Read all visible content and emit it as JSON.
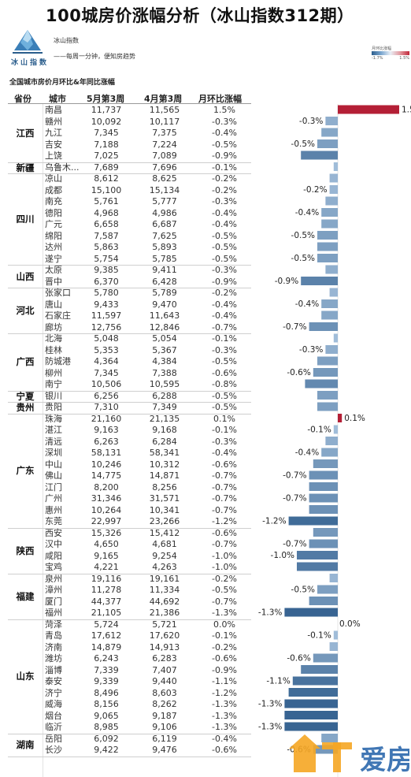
{
  "title": "100城房价涨幅分析（冰山指数312期）",
  "brand": {
    "logo_text": "冰山指数",
    "name": "冰山指数",
    "slogan": "——每周一分钟，便知房趋势"
  },
  "legend": {
    "title": "月环比涨幅",
    "min": "-1.7%",
    "max": "1.5%"
  },
  "subtitle": "全国城市房价月环比&年同比涨幅",
  "headers": [
    "省份",
    "城市",
    "5月第3周",
    "4月第3周",
    "月环比涨幅"
  ],
  "watermark": "爱房",
  "colors": {
    "positive": "#b41f36",
    "negative_light": "#a9c4df",
    "negative_dark": "#2f5d8c"
  },
  "chart_data": {
    "type": "bar",
    "orientation": "horizontal",
    "series_name": "月环比涨幅",
    "groups": [
      {
        "province": "江西",
        "rows": [
          {
            "city": "南昌",
            "w5": "11,737",
            "w4": "11,565",
            "pct": 1.5,
            "label": "1.5%"
          },
          {
            "city": "赣州",
            "w5": "10,092",
            "w4": "10,117",
            "pct": -0.3,
            "label": "-0.3%"
          },
          {
            "city": "九江",
            "w5": "7,345",
            "w4": "7,375",
            "pct": -0.4,
            "label": "-0.4%"
          },
          {
            "city": "吉安",
            "w5": "7,188",
            "w4": "7,224",
            "pct": -0.5,
            "label": "-0.5%"
          },
          {
            "city": "上饶",
            "w5": "7,025",
            "w4": "7,089",
            "pct": -0.9,
            "label": "-0.9%"
          }
        ]
      },
      {
        "province": "新疆",
        "rows": [
          {
            "city": "乌鲁木...",
            "w5": "7,689",
            "w4": "7,696",
            "pct": -0.1,
            "label": "-0.1%"
          }
        ]
      },
      {
        "province": "四川",
        "rows": [
          {
            "city": "凉山",
            "w5": "8,612",
            "w4": "8,625",
            "pct": -0.2,
            "label": "-0.2%"
          },
          {
            "city": "成都",
            "w5": "15,100",
            "w4": "15,134",
            "pct": -0.2,
            "label": "-0.2%"
          },
          {
            "city": "南充",
            "w5": "5,761",
            "w4": "5,777",
            "pct": -0.3,
            "label": "-0.3%"
          },
          {
            "city": "德阳",
            "w5": "4,968",
            "w4": "4,986",
            "pct": -0.4,
            "label": "-0.4%"
          },
          {
            "city": "广元",
            "w5": "6,658",
            "w4": "6,687",
            "pct": -0.4,
            "label": "-0.4%"
          },
          {
            "city": "绵阳",
            "w5": "7,587",
            "w4": "7,625",
            "pct": -0.5,
            "label": "-0.5%"
          },
          {
            "city": "达州",
            "w5": "5,863",
            "w4": "5,893",
            "pct": -0.5,
            "label": "-0.5%"
          },
          {
            "city": "遂宁",
            "w5": "5,754",
            "w4": "5,785",
            "pct": -0.5,
            "label": "-0.5%"
          }
        ]
      },
      {
        "province": "山西",
        "rows": [
          {
            "city": "太原",
            "w5": "9,385",
            "w4": "9,411",
            "pct": -0.3,
            "label": "-0.3%"
          },
          {
            "city": "晋中",
            "w5": "6,370",
            "w4": "6,428",
            "pct": -0.9,
            "label": "-0.9%"
          }
        ]
      },
      {
        "province": "河北",
        "rows": [
          {
            "city": "张家口",
            "w5": "5,780",
            "w4": "5,789",
            "pct": -0.2,
            "label": "-0.2%"
          },
          {
            "city": "唐山",
            "w5": "9,433",
            "w4": "9,470",
            "pct": -0.4,
            "label": "-0.4%"
          },
          {
            "city": "石家庄",
            "w5": "11,597",
            "w4": "11,643",
            "pct": -0.4,
            "label": "-0.4%"
          },
          {
            "city": "廊坊",
            "w5": "12,756",
            "w4": "12,846",
            "pct": -0.7,
            "label": "-0.7%"
          }
        ]
      },
      {
        "province": "广西",
        "rows": [
          {
            "city": "北海",
            "w5": "5,048",
            "w4": "5,054",
            "pct": -0.1,
            "label": "-0.1%"
          },
          {
            "city": "桂林",
            "w5": "5,353",
            "w4": "5,367",
            "pct": -0.3,
            "label": "-0.3%"
          },
          {
            "city": "防城港",
            "w5": "4,364",
            "w4": "4,384",
            "pct": -0.5,
            "label": "-0.5%"
          },
          {
            "city": "柳州",
            "w5": "7,345",
            "w4": "7,388",
            "pct": -0.6,
            "label": "-0.6%"
          },
          {
            "city": "南宁",
            "w5": "10,506",
            "w4": "10,595",
            "pct": -0.8,
            "label": "-0.8%"
          }
        ]
      },
      {
        "province": "宁夏",
        "rows": [
          {
            "city": "银川",
            "w5": "6,256",
            "w4": "6,288",
            "pct": -0.5,
            "label": "-0.5%"
          }
        ]
      },
      {
        "province": "贵州",
        "rows": [
          {
            "city": "贵阳",
            "w5": "7,310",
            "w4": "7,349",
            "pct": -0.5,
            "label": "-0.5%"
          }
        ]
      },
      {
        "province": "广东",
        "rows": [
          {
            "city": "珠海",
            "w5": "21,160",
            "w4": "21,135",
            "pct": 0.1,
            "label": "0.1%"
          },
          {
            "city": "湛江",
            "w5": "9,163",
            "w4": "9,168",
            "pct": -0.1,
            "label": "-0.1%"
          },
          {
            "city": "清远",
            "w5": "6,263",
            "w4": "6,284",
            "pct": -0.3,
            "label": "-0.3%"
          },
          {
            "city": "深圳",
            "w5": "58,131",
            "w4": "58,341",
            "pct": -0.4,
            "label": "-0.4%"
          },
          {
            "city": "中山",
            "w5": "10,246",
            "w4": "10,312",
            "pct": -0.6,
            "label": "-0.6%"
          },
          {
            "city": "佛山",
            "w5": "14,775",
            "w4": "14,871",
            "pct": -0.7,
            "label": "-0.7%"
          },
          {
            "city": "江门",
            "w5": "8,200",
            "w4": "8,256",
            "pct": -0.7,
            "label": "-0.7%"
          },
          {
            "city": "广州",
            "w5": "31,346",
            "w4": "31,571",
            "pct": -0.7,
            "label": "-0.7%"
          },
          {
            "city": "惠州",
            "w5": "10,264",
            "w4": "10,341",
            "pct": -0.7,
            "label": "-0.7%"
          },
          {
            "city": "东莞",
            "w5": "22,997",
            "w4": "23,266",
            "pct": -1.2,
            "label": "-1.2%"
          }
        ]
      },
      {
        "province": "陕西",
        "rows": [
          {
            "city": "西安",
            "w5": "15,326",
            "w4": "15,412",
            "pct": -0.6,
            "label": "-0.6%"
          },
          {
            "city": "汉中",
            "w5": "4,650",
            "w4": "4,681",
            "pct": -0.7,
            "label": "-0.7%"
          },
          {
            "city": "咸阳",
            "w5": "9,165",
            "w4": "9,254",
            "pct": -1.0,
            "label": "-1.0%"
          },
          {
            "city": "宝鸡",
            "w5": "4,221",
            "w4": "4,263",
            "pct": -1.0,
            "label": "-1.0%"
          }
        ]
      },
      {
        "province": "福建",
        "rows": [
          {
            "city": "泉州",
            "w5": "19,116",
            "w4": "19,161",
            "pct": -0.2,
            "label": "-0.2%"
          },
          {
            "city": "漳州",
            "w5": "11,278",
            "w4": "11,334",
            "pct": -0.5,
            "label": "-0.5%"
          },
          {
            "city": "厦门",
            "w5": "44,377",
            "w4": "44,692",
            "pct": -0.7,
            "label": "-0.7%"
          },
          {
            "city": "福州",
            "w5": "21,105",
            "w4": "21,386",
            "pct": -1.3,
            "label": "-1.3%"
          }
        ]
      },
      {
        "province": "山东",
        "rows": [
          {
            "city": "菏泽",
            "w5": "5,724",
            "w4": "5,721",
            "pct": 0.0,
            "label": "0.0%"
          },
          {
            "city": "青岛",
            "w5": "17,612",
            "w4": "17,620",
            "pct": -0.1,
            "label": "-0.1%"
          },
          {
            "city": "济南",
            "w5": "14,879",
            "w4": "14,913",
            "pct": -0.2,
            "label": "-0.2%"
          },
          {
            "city": "潍坊",
            "w5": "6,243",
            "w4": "6,283",
            "pct": -0.6,
            "label": "-0.6%"
          },
          {
            "city": "淄博",
            "w5": "7,339",
            "w4": "7,407",
            "pct": -0.9,
            "label": "-0.9%"
          },
          {
            "city": "泰安",
            "w5": "9,339",
            "w4": "9,440",
            "pct": -1.1,
            "label": "-1.1%"
          },
          {
            "city": "济宁",
            "w5": "8,496",
            "w4": "8,603",
            "pct": -1.2,
            "label": "-1.2%"
          },
          {
            "city": "威海",
            "w5": "8,156",
            "w4": "8,262",
            "pct": -1.3,
            "label": "-1.3%"
          },
          {
            "city": "烟台",
            "w5": "9,065",
            "w4": "9,187",
            "pct": -1.3,
            "label": "-1.3%"
          },
          {
            "city": "临沂",
            "w5": "8,985",
            "w4": "9,106",
            "pct": -1.3,
            "label": "-1.3%"
          }
        ]
      },
      {
        "province": "湖南",
        "rows": [
          {
            "city": "岳阳",
            "w5": "6,092",
            "w4": "6,119",
            "pct": -0.4,
            "label": "-0.4%"
          },
          {
            "city": "长沙",
            "w5": "9,422",
            "w4": "9,476",
            "pct": -0.6,
            "label": "-0.6%"
          }
        ]
      }
    ],
    "visible_labels": [
      "南昌",
      "赣州",
      "吉安",
      "成都",
      "德阳",
      "绵阳",
      "遂宁",
      "晋中",
      "唐山",
      "廊坊",
      "桂林",
      "柳州",
      "珠海",
      "湛江",
      "深圳",
      "佛山",
      "广州",
      "东莞",
      "汉中",
      "咸阳",
      "漳州",
      "福州",
      "菏泽",
      "青岛",
      "潍坊",
      "泰安",
      "威海",
      "临沂",
      "长沙"
    ],
    "xlim": [
      -1.7,
      1.5
    ]
  }
}
